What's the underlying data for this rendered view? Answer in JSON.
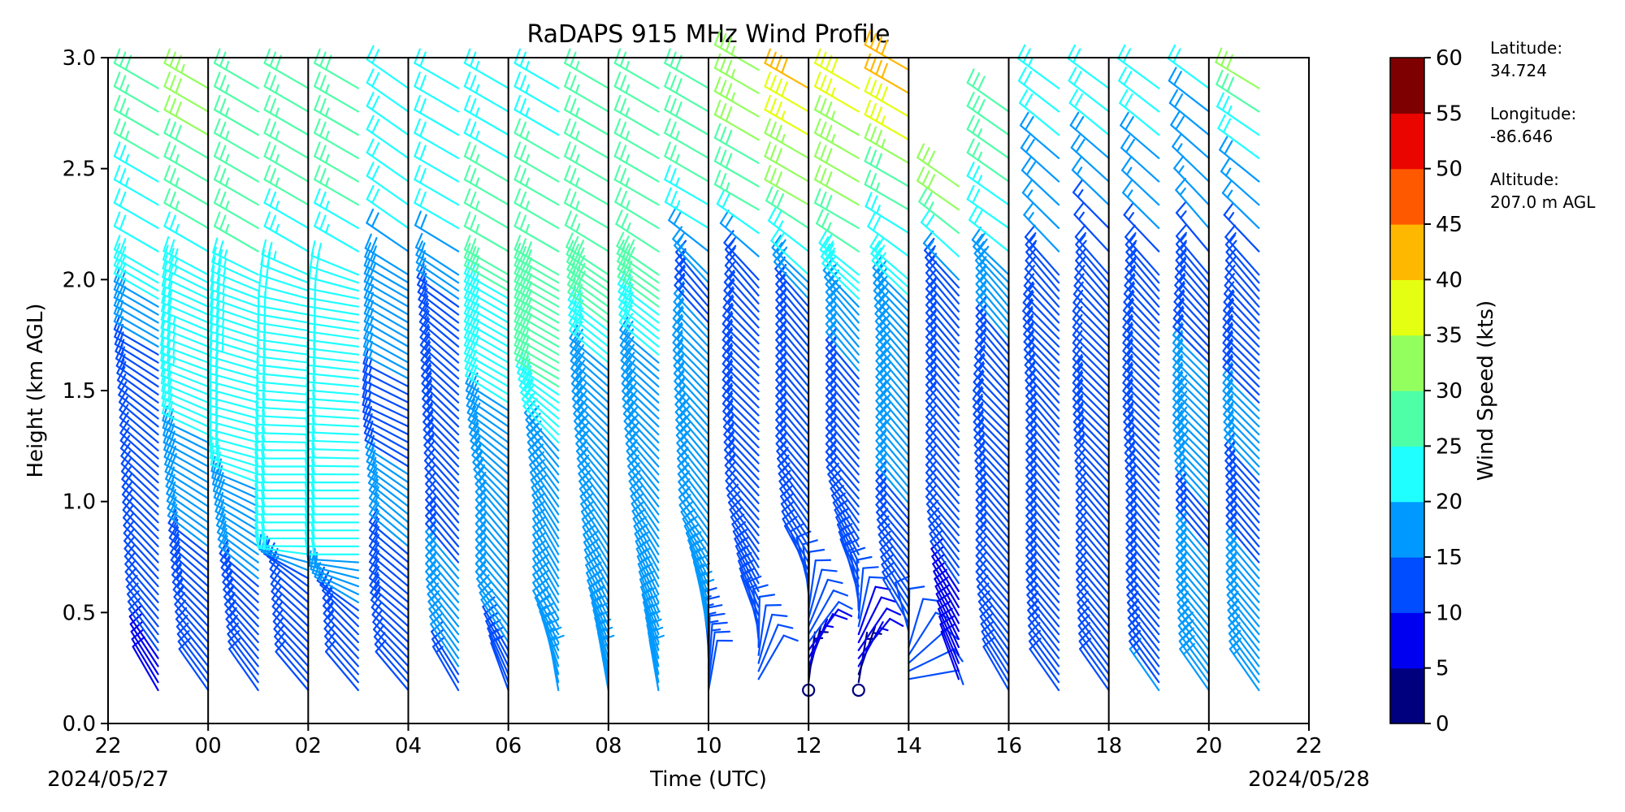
{
  "chart_data": {
    "type": "wind-barb",
    "title": "RaDAPS 915 MHz Wind Profile",
    "xlabel": "Time (UTC)",
    "ylabel": "Height (km AGL)",
    "x_ticks": [
      "22",
      "00",
      "02",
      "04",
      "06",
      "08",
      "10",
      "12",
      "14",
      "16",
      "18",
      "20",
      "22"
    ],
    "x_range_hours": [
      22,
      46
    ],
    "date_start": "2024/05/27",
    "date_end": "2024/05/28",
    "ylim": [
      0.0,
      3.0
    ],
    "y_ticks": [
      "0.0",
      "0.5",
      "1.0",
      "1.5",
      "2.0",
      "2.5",
      "3.0"
    ],
    "grid": "vertical lines every 2 hours",
    "colorbar": {
      "label": "Wind Speed (kts)",
      "ticks": [
        "0",
        "5",
        "10",
        "15",
        "20",
        "25",
        "30",
        "35",
        "40",
        "45",
        "50",
        "55",
        "60"
      ],
      "colors": [
        "#00007f",
        "#0000f1",
        "#004cff",
        "#0099ff",
        "#1fffff",
        "#4fffa8",
        "#93ff5f",
        "#e4ff12",
        "#ffb800",
        "#ff5900",
        "#ea0500",
        "#7f0000"
      ]
    },
    "site_info": [
      {
        "label": "Latitude:",
        "value": "34.724"
      },
      {
        "label": "Longitude:",
        "value": "-86.646"
      },
      {
        "label": "Altitude:",
        "value": "207.0 m AGL"
      }
    ],
    "profiles": [
      {
        "time": 23.0,
        "levels": [
          [
            0.15,
            8,
            330
          ],
          [
            0.5,
            12,
            320
          ],
          [
            0.9,
            11,
            315
          ],
          [
            1.3,
            11,
            310
          ],
          [
            1.65,
            14,
            300
          ],
          [
            1.9,
            20,
            300
          ],
          [
            2.1,
            20,
            300
          ],
          [
            2.5,
            25,
            300
          ],
          [
            2.9,
            28,
            300
          ]
        ]
      },
      {
        "time": 24.0,
        "levels": [
          [
            0.15,
            11,
            325
          ],
          [
            0.5,
            13,
            315
          ],
          [
            0.9,
            16,
            305
          ],
          [
            1.3,
            20,
            295
          ],
          [
            1.6,
            23,
            290
          ],
          [
            1.9,
            22,
            295
          ],
          [
            2.1,
            24,
            300
          ],
          [
            2.5,
            28,
            300
          ],
          [
            2.9,
            34,
            300
          ]
        ]
      },
      {
        "time": 25.0,
        "levels": [
          [
            0.15,
            12,
            325
          ],
          [
            0.5,
            14,
            315
          ],
          [
            0.9,
            17,
            300
          ],
          [
            1.2,
            22,
            285
          ],
          [
            1.5,
            22,
            285
          ],
          [
            1.9,
            24,
            290
          ],
          [
            2.1,
            25,
            300
          ],
          [
            2.5,
            26,
            300
          ],
          [
            2.9,
            27,
            300
          ]
        ]
      },
      {
        "time": 26.0,
        "levels": [
          [
            0.15,
            12,
            320
          ],
          [
            0.6,
            12,
            310
          ],
          [
            0.8,
            22,
            270
          ],
          [
            1.2,
            22,
            270
          ],
          [
            1.5,
            22,
            275
          ],
          [
            1.85,
            20,
            280
          ],
          [
            2.1,
            24,
            300
          ],
          [
            2.5,
            26,
            300
          ],
          [
            2.9,
            28,
            300
          ]
        ]
      },
      {
        "time": 27.0,
        "levels": [
          [
            0.15,
            12,
            320
          ],
          [
            0.45,
            13,
            315
          ],
          [
            0.75,
            20,
            270
          ],
          [
            1.1,
            20,
            270
          ],
          [
            1.5,
            21,
            275
          ],
          [
            1.9,
            20,
            280
          ],
          [
            2.1,
            24,
            300
          ],
          [
            2.5,
            26,
            300
          ],
          [
            2.9,
            28,
            300
          ]
        ]
      },
      {
        "time": 28.0,
        "levels": [
          [
            0.15,
            11,
            320
          ],
          [
            0.5,
            13,
            310
          ],
          [
            0.9,
            16,
            310
          ],
          [
            1.35,
            14,
            295
          ],
          [
            1.7,
            16,
            300
          ],
          [
            1.95,
            18,
            300
          ],
          [
            2.15,
            20,
            305
          ],
          [
            2.55,
            22,
            305
          ],
          [
            2.95,
            22,
            305
          ]
        ]
      },
      {
        "time": 29.0,
        "levels": [
          [
            0.15,
            14,
            330
          ],
          [
            0.5,
            18,
            320
          ],
          [
            0.9,
            12,
            320
          ],
          [
            1.3,
            13,
            315
          ],
          [
            1.7,
            14,
            310
          ],
          [
            1.9,
            15,
            305
          ],
          [
            2.2,
            20,
            300
          ],
          [
            2.6,
            20,
            300
          ],
          [
            2.95,
            20,
            300
          ]
        ]
      },
      {
        "time": 30.0,
        "levels": [
          [
            0.15,
            12,
            340
          ],
          [
            0.5,
            17,
            320
          ],
          [
            0.9,
            15,
            320
          ],
          [
            1.3,
            18,
            305
          ],
          [
            1.55,
            22,
            300
          ],
          [
            1.85,
            24,
            300
          ],
          [
            2.1,
            27,
            300
          ],
          [
            2.5,
            25,
            300
          ],
          [
            2.9,
            24,
            300
          ]
        ]
      },
      {
        "time": 31.0,
        "levels": [
          [
            0.15,
            16,
            350
          ],
          [
            0.4,
            18,
            330
          ],
          [
            0.8,
            17,
            330
          ],
          [
            1.2,
            19,
            320
          ],
          [
            1.55,
            26,
            300
          ],
          [
            1.9,
            30,
            300
          ],
          [
            2.2,
            26,
            300
          ],
          [
            2.6,
            25,
            300
          ],
          [
            2.95,
            24,
            300
          ]
        ]
      },
      {
        "time": 32.0,
        "levels": [
          [
            0.15,
            16,
            350
          ],
          [
            0.45,
            18,
            335
          ],
          [
            0.9,
            17,
            325
          ],
          [
            1.3,
            18,
            315
          ],
          [
            1.6,
            20,
            310
          ],
          [
            1.95,
            30,
            305
          ],
          [
            2.2,
            26,
            300
          ],
          [
            2.6,
            25,
            300
          ],
          [
            2.95,
            28,
            300
          ]
        ]
      },
      {
        "time": 33.0,
        "levels": [
          [
            0.15,
            15,
            350
          ],
          [
            0.4,
            17,
            340
          ],
          [
            0.9,
            17,
            325
          ],
          [
            1.3,
            18,
            315
          ],
          [
            1.65,
            20,
            310
          ],
          [
            2.0,
            28,
            305
          ],
          [
            2.3,
            25,
            300
          ],
          [
            2.65,
            26,
            300
          ],
          [
            2.95,
            27,
            300
          ]
        ]
      },
      {
        "time": 34.0,
        "levels": [
          [
            0.15,
            12,
            10
          ],
          [
            0.4,
            15,
            350
          ],
          [
            0.8,
            16,
            325
          ],
          [
            1.2,
            18,
            320
          ],
          [
            1.6,
            16,
            315
          ],
          [
            1.95,
            14,
            320
          ],
          [
            2.25,
            24,
            300
          ],
          [
            2.6,
            28,
            300
          ],
          [
            2.95,
            30,
            300
          ]
        ]
      },
      {
        "time": 35.0,
        "levels": [
          [
            0.2,
            11,
            30
          ],
          [
            0.45,
            13,
            340
          ],
          [
            0.9,
            12,
            320
          ],
          [
            1.3,
            14,
            315
          ],
          [
            1.65,
            14,
            315
          ],
          [
            1.95,
            12,
            320
          ],
          [
            2.3,
            26,
            300
          ],
          [
            2.65,
            32,
            300
          ],
          [
            2.95,
            34,
            300
          ]
        ]
      },
      {
        "time": 36.0,
        "levels": [
          [
            0.15,
            2,
            0
          ],
          [
            0.35,
            10,
            40
          ],
          [
            0.7,
            12,
            330
          ],
          [
            1.1,
            14,
            320
          ],
          [
            1.5,
            15,
            320
          ],
          [
            1.85,
            14,
            320
          ],
          [
            2.3,
            30,
            300
          ],
          [
            2.65,
            36,
            300
          ],
          [
            2.95,
            44,
            300
          ]
        ]
      },
      {
        "time": 37.0,
        "levels": [
          [
            0.15,
            2,
            0
          ],
          [
            0.3,
            8,
            40
          ],
          [
            0.6,
            13,
            340
          ],
          [
            1.0,
            15,
            320
          ],
          [
            1.4,
            13,
            320
          ],
          [
            1.8,
            18,
            320
          ],
          [
            2.2,
            28,
            300
          ],
          [
            2.6,
            34,
            300
          ],
          [
            2.95,
            40,
            300
          ]
        ]
      },
      {
        "time": 38.0,
        "levels": [
          [
            0.2,
            10,
            80
          ],
          [
            0.45,
            11,
            330
          ],
          [
            0.8,
            13,
            320
          ],
          [
            1.2,
            18,
            320
          ],
          [
            1.6,
            18,
            320
          ],
          [
            1.9,
            20,
            315
          ],
          [
            2.25,
            24,
            300
          ],
          [
            2.6,
            36,
            300
          ],
          [
            2.95,
            42,
            300
          ]
        ]
      },
      {
        "time": 39.0,
        "levels": [
          [
            0.2,
            9,
            340
          ],
          [
            0.5,
            9,
            330
          ],
          [
            0.85,
            12,
            320
          ],
          [
            1.25,
            12,
            320
          ],
          [
            1.65,
            14,
            320
          ],
          [
            1.9,
            12,
            320
          ],
          [
            2.3,
            30,
            305
          ],
          [
            2.5,
            30,
            305
          ]
        ]
      },
      {
        "time": 40.0,
        "levels": [
          [
            0.15,
            11,
            330
          ],
          [
            0.5,
            12,
            320
          ],
          [
            0.9,
            13,
            320
          ],
          [
            1.3,
            13,
            315
          ],
          [
            1.6,
            14,
            320
          ],
          [
            1.9,
            17,
            320
          ],
          [
            2.2,
            22,
            305
          ],
          [
            2.6,
            28,
            305
          ],
          [
            2.85,
            30,
            305
          ]
        ]
      },
      {
        "time": 41.0,
        "levels": [
          [
            0.15,
            12,
            325
          ],
          [
            0.5,
            13,
            320
          ],
          [
            0.9,
            13,
            320
          ],
          [
            1.3,
            13,
            320
          ],
          [
            1.7,
            13,
            315
          ],
          [
            1.95,
            12,
            320
          ],
          [
            2.2,
            17,
            315
          ],
          [
            2.6,
            20,
            310
          ],
          [
            2.95,
            24,
            305
          ]
        ]
      },
      {
        "time": 42.0,
        "levels": [
          [
            0.15,
            12,
            325
          ],
          [
            0.5,
            12,
            320
          ],
          [
            0.9,
            12,
            320
          ],
          [
            1.3,
            13,
            315
          ],
          [
            1.7,
            12,
            315
          ],
          [
            1.95,
            12,
            320
          ],
          [
            2.25,
            15,
            315
          ],
          [
            2.6,
            20,
            310
          ],
          [
            2.95,
            22,
            305
          ]
        ]
      },
      {
        "time": 43.0,
        "levels": [
          [
            0.15,
            15,
            325
          ],
          [
            0.5,
            14,
            320
          ],
          [
            0.9,
            13,
            320
          ],
          [
            1.3,
            15,
            315
          ],
          [
            1.65,
            13,
            315
          ],
          [
            1.95,
            13,
            320
          ],
          [
            2.2,
            15,
            315
          ],
          [
            2.6,
            20,
            310
          ],
          [
            2.95,
            22,
            305
          ]
        ]
      },
      {
        "time": 44.0,
        "levels": [
          [
            0.15,
            18,
            325
          ],
          [
            0.5,
            17,
            320
          ],
          [
            0.9,
            14,
            320
          ],
          [
            1.2,
            20,
            315
          ],
          [
            1.6,
            15,
            315
          ],
          [
            1.95,
            14,
            320
          ],
          [
            2.2,
            15,
            320
          ],
          [
            2.6,
            18,
            310
          ],
          [
            2.95,
            22,
            305
          ]
        ]
      },
      {
        "time": 45.0,
        "levels": [
          [
            0.15,
            17,
            325
          ],
          [
            0.5,
            16,
            320
          ],
          [
            0.9,
            14,
            320
          ],
          [
            1.3,
            16,
            315
          ],
          [
            1.65,
            13,
            315
          ],
          [
            1.95,
            12,
            320
          ],
          [
            2.2,
            15,
            315
          ],
          [
            2.6,
            22,
            305
          ],
          [
            2.95,
            36,
            300
          ]
        ]
      }
    ]
  }
}
